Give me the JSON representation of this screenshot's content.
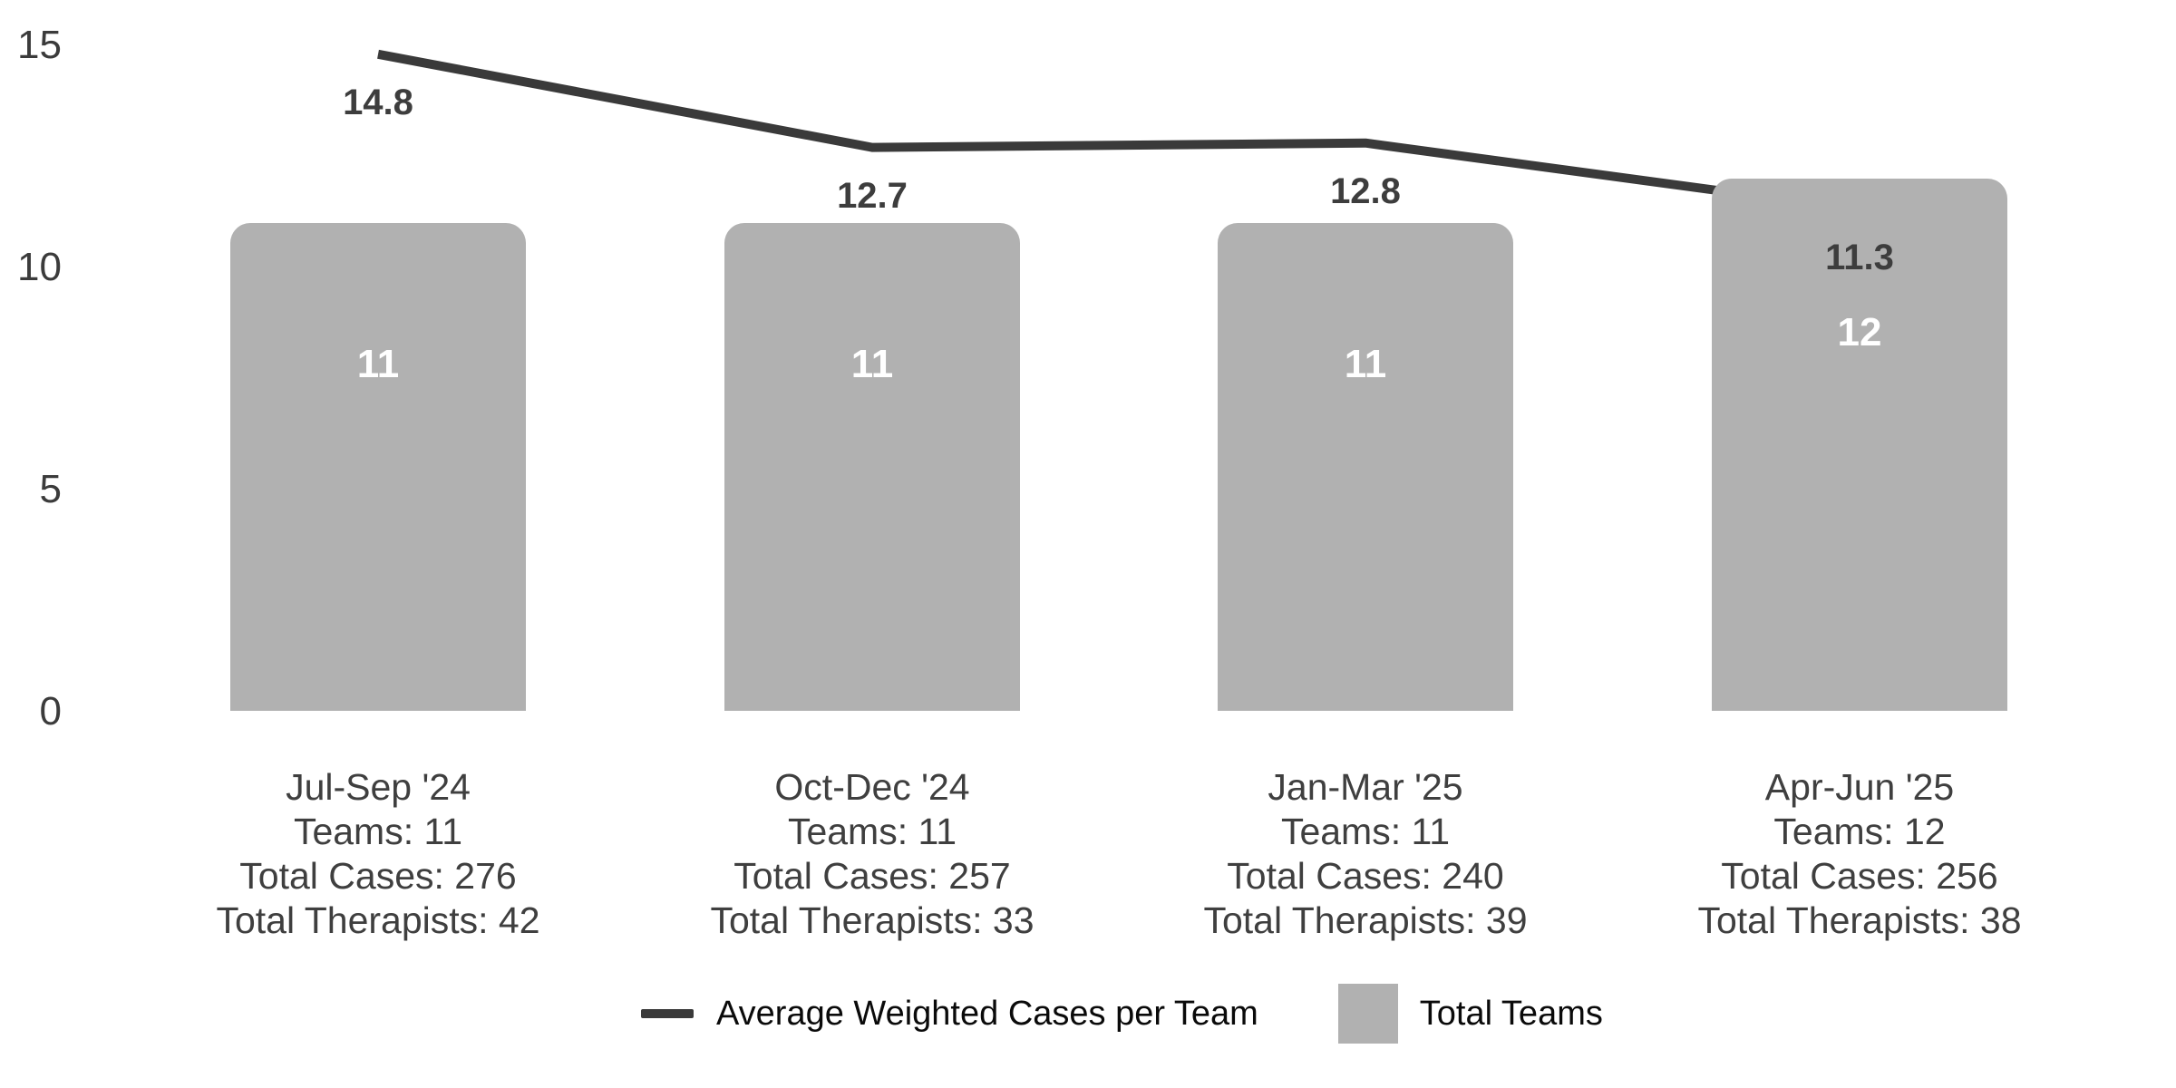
{
  "chart_data": {
    "type": "bar+line combo",
    "categories": [
      "Jul-Sep '24",
      "Oct-Dec '24",
      "Jan-Mar '25",
      "Apr-Jun '25"
    ],
    "series": [
      {
        "name": "Average Weighted Cases per Team",
        "type": "line",
        "values": [
          14.8,
          12.7,
          12.8,
          11.3
        ],
        "labels": [
          "14.8",
          "12.7",
          "12.8",
          "11.3"
        ],
        "color": "#3a3a3a"
      },
      {
        "name": "Total Teams",
        "type": "bar",
        "values": [
          11,
          11,
          11,
          12
        ],
        "labels": [
          "11",
          "11",
          "11",
          "12"
        ],
        "color": "#b1b1b1"
      }
    ],
    "category_footnotes": [
      [
        "Teams: 11",
        "Total Cases: 276",
        "Total Therapists: 42"
      ],
      [
        "Teams: 11",
        "Total Cases: 257",
        "Total Therapists: 33"
      ],
      [
        "Teams: 11",
        "Total Cases: 240",
        "Total Therapists: 39"
      ],
      [
        "Teams: 12",
        "Total Cases: 256",
        "Total Therapists: 38"
      ]
    ],
    "y_axis": {
      "ticks": [
        "0",
        "5",
        "10",
        "15"
      ],
      "tick_values": [
        0,
        5,
        10,
        15
      ],
      "min": 0,
      "max": 15
    },
    "grid": false,
    "legend": {
      "position": "bottom",
      "entries": [
        "Average Weighted Cases per Team",
        "Total Teams"
      ]
    },
    "colors": {
      "line": "#3a3a3a",
      "bar": "#b1b1b1",
      "axis_text": "#3b3b3b",
      "category_text": "#3f3f3f",
      "line_label_text": "#3d3d3d",
      "bar_label_text": "#ffffff",
      "legend_text": "#0a0a0a",
      "background": "#ffffff"
    }
  }
}
